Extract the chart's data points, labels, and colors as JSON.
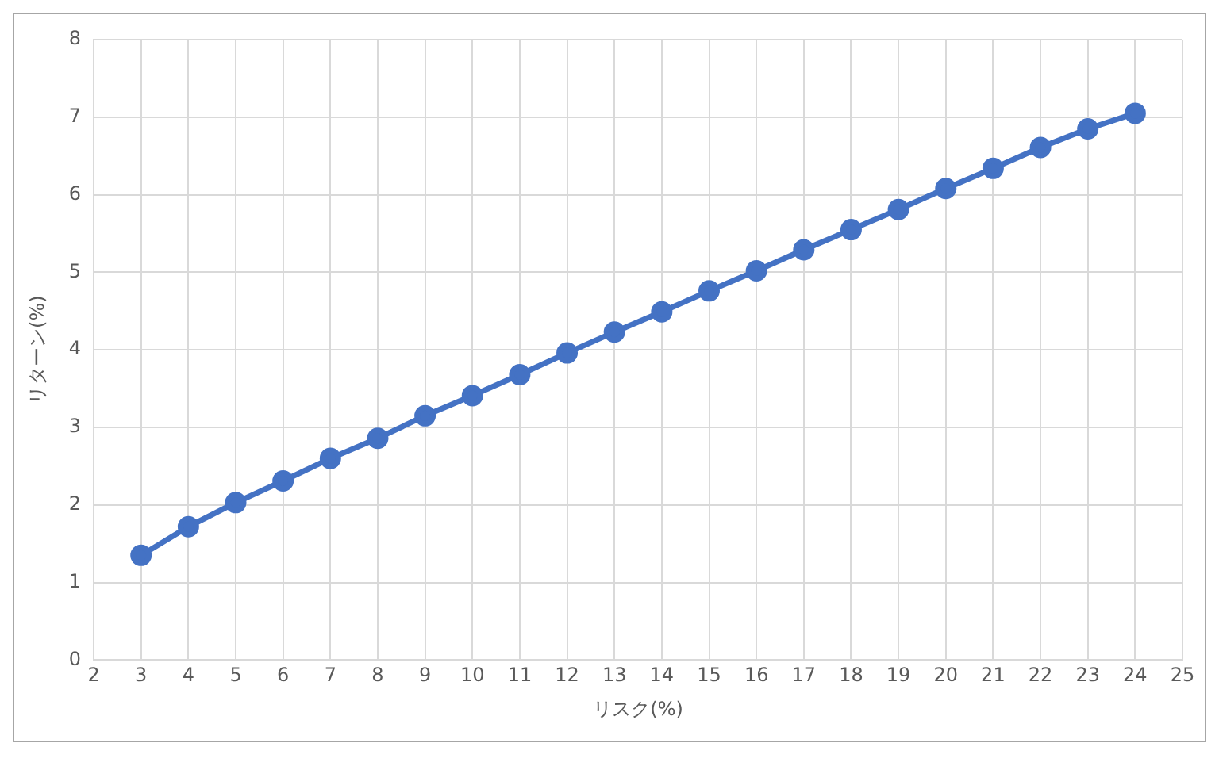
{
  "chart_data": {
    "type": "line",
    "xlabel": "リスク(%)",
    "ylabel": "リターン(%)",
    "x": [
      3,
      4,
      5,
      6,
      7,
      8,
      9,
      10,
      11,
      12,
      13,
      14,
      15,
      16,
      17,
      18,
      19,
      20,
      21,
      22,
      23,
      24
    ],
    "series": [
      {
        "color": "#4472c4",
        "values": [
          1.35,
          1.72,
          2.03,
          2.31,
          2.6,
          2.86,
          3.15,
          3.41,
          3.68,
          3.96,
          4.23,
          4.49,
          4.76,
          5.02,
          5.29,
          5.55,
          5.81,
          6.08,
          6.34,
          6.61,
          6.85,
          7.05
        ]
      }
    ],
    "xlim": [
      2,
      25
    ],
    "xticks": [
      2,
      3,
      4,
      5,
      6,
      7,
      8,
      9,
      10,
      11,
      12,
      13,
      14,
      15,
      16,
      17,
      18,
      19,
      20,
      21,
      22,
      23,
      24,
      25
    ],
    "ylim": [
      0,
      8
    ],
    "yticks": [
      0,
      1,
      2,
      3,
      4,
      5,
      6,
      7,
      8
    ],
    "grid": true,
    "marker": "circle",
    "line_style": "solid",
    "legend": false
  }
}
